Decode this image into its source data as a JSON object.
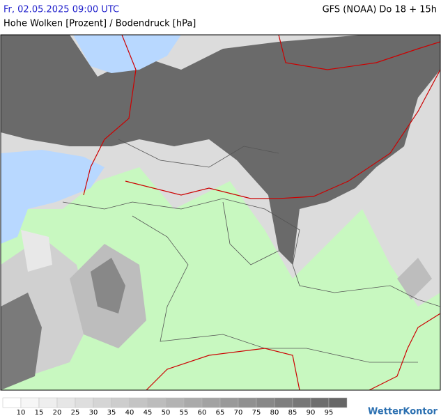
{
  "header": {
    "datetime": "Fr, 02.05.2025 09:00 UTC",
    "model": "GFS (NOAA) Do 18 + 15h",
    "subtitle": "Hohe Wolken [Prozent] / Bodendruck [hPa]"
  },
  "legend": {
    "labels": [
      10,
      15,
      20,
      25,
      30,
      35,
      40,
      45,
      50,
      55,
      60,
      65,
      70,
      75,
      80,
      85,
      90,
      95
    ],
    "colors": [
      "#ffffff",
      "#f6f6f6",
      "#eeeeee",
      "#e6e6e6",
      "#dedede",
      "#d5d5d5",
      "#cdcdcd",
      "#c4c4c4",
      "#bcbcbc",
      "#b3b3b3",
      "#aaaaaa",
      "#a2a2a2",
      "#999999",
      "#909090",
      "#888888",
      "#7f7f7f",
      "#777777",
      "#6e6e6e",
      "#666666"
    ]
  },
  "brand": "WetterKontor"
}
